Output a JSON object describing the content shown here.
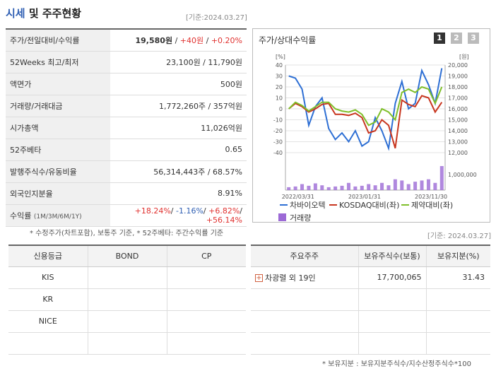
{
  "header": {
    "title_accent": "시세",
    "title_rest": " 및 주주현황",
    "as_of": "[기준:2024.03.27]"
  },
  "info": {
    "rows": [
      {
        "label": "주가/전일대비/수익률",
        "price": "19,580원",
        "sep1": " / ",
        "change": "+40원",
        "sep2": " / ",
        "rate": "+0.20%"
      },
      {
        "label": "52Weeks 최고/최저",
        "value": "23,100원 / 11,790원"
      },
      {
        "label": "액면가",
        "value": "500원"
      },
      {
        "label": "거래량/거래대금",
        "value": "1,772,260주 / 357억원"
      },
      {
        "label": "시가총액",
        "value": "11,026억원"
      },
      {
        "label": "52주베타",
        "value": "0.65"
      },
      {
        "label": "발행주식수/유동비율",
        "value": "56,314,443주 / 68.57%"
      },
      {
        "label": "외국인지분율",
        "value": "8.91%"
      },
      {
        "label": "수익률",
        "label_small": "(1M/3M/6M/1Y)",
        "r1": "+18.24%",
        "r2": "-1.16%",
        "r3": "+6.82%",
        "r4": "+56.14%"
      }
    ],
    "note": "* 수정주가(차트포함), 보통주 기준, * 52주베타: 주간수익률 기준"
  },
  "chart": {
    "title": "주가/상대수익률",
    "pages": [
      "1",
      "2",
      "3"
    ],
    "right_as_of": "[기준: 2024.03.27]"
  },
  "chart_data": {
    "type": "line",
    "left_unit": "[%]",
    "right_unit": "[원]",
    "left_ticks": [
      "40",
      "30",
      "20",
      "10",
      "0",
      "-10",
      "-20",
      "-30",
      "-40"
    ],
    "right_ticks": [
      "20,000",
      "19,000",
      "18,000",
      "17,000",
      "16,000",
      "15,000",
      "14,000",
      "13,000",
      "12,000"
    ],
    "ylim_left": [
      -40,
      40
    ],
    "volume_tick": "1,000,000",
    "x_ticks": [
      "2022/03/31",
      "2023/01/31",
      "2023/11/30"
    ],
    "x_tick_index": [
      0,
      10,
      20
    ],
    "series": [
      {
        "name": "차바이오텍",
        "color": "#2e6fd4",
        "values": [
          30,
          28,
          18,
          -15,
          2,
          10,
          -18,
          -28,
          -22,
          -30,
          -20,
          -34,
          -30,
          -8,
          -20,
          -36,
          5,
          25,
          0,
          5,
          35,
          22,
          5,
          37
        ]
      },
      {
        "name": "KOSDAQ대비(좌)",
        "color": "#c8361f",
        "values": [
          0,
          5,
          2,
          -3,
          0,
          4,
          5,
          -5,
          -5,
          -6,
          -4,
          -8,
          -22,
          -20,
          -10,
          -15,
          -36,
          8,
          4,
          2,
          12,
          10,
          -3,
          6
        ]
      },
      {
        "name": "제약대비(좌)",
        "color": "#7fbf2a",
        "values": [
          0,
          6,
          3,
          -2,
          2,
          6,
          6,
          0,
          -2,
          -3,
          -1,
          -5,
          -15,
          -12,
          0,
          -3,
          -10,
          15,
          18,
          15,
          20,
          18,
          5,
          20
        ]
      }
    ],
    "volume": {
      "name": "거래량",
      "color": "#9c6ad6",
      "values": [
        0.12,
        0.15,
        0.25,
        0.18,
        0.28,
        0.2,
        0.12,
        0.15,
        0.18,
        0.3,
        0.15,
        0.18,
        0.25,
        0.2,
        0.3,
        0.2,
        0.45,
        0.4,
        0.25,
        0.35,
        0.4,
        0.45,
        0.3,
        1.0
      ]
    }
  },
  "credit": {
    "headers": [
      "신용등급",
      "BOND",
      "CP"
    ],
    "rows": [
      [
        "KIS",
        "",
        ""
      ],
      [
        "KR",
        "",
        ""
      ],
      [
        "NICE",
        "",
        ""
      ],
      [
        "",
        "",
        ""
      ]
    ]
  },
  "holders": {
    "headers": [
      "주요주주",
      "보유주식수(보통)",
      "보유지분(%)"
    ],
    "rows": [
      {
        "name": "차광렬 외 19인",
        "shares": "17,700,065",
        "pct": "31.43"
      },
      {
        "name": "",
        "shares": "",
        "pct": ""
      },
      {
        "name": "",
        "shares": "",
        "pct": ""
      },
      {
        "name": "",
        "shares": "",
        "pct": ""
      }
    ],
    "note": "* 보유지분 : 보유지분주식수/지수산정주식수*100"
  }
}
